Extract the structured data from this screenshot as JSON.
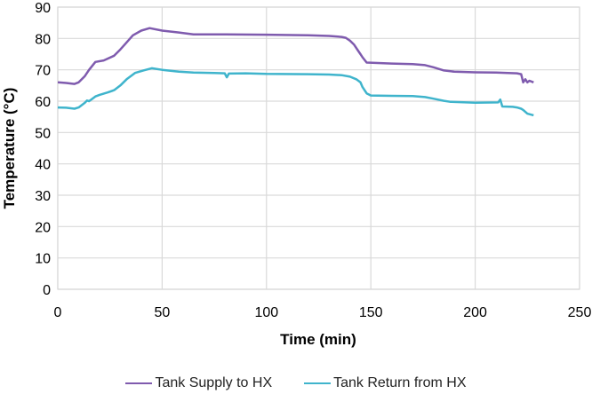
{
  "chart_data": {
    "type": "line",
    "title": "",
    "xlabel": "Time (min)",
    "ylabel": "Temperature (°C)",
    "xlim": [
      0,
      250
    ],
    "ylim": [
      0,
      90
    ],
    "xticks": [
      0,
      50,
      100,
      150,
      200,
      250
    ],
    "yticks": [
      0,
      10,
      20,
      30,
      40,
      50,
      60,
      70,
      80,
      90
    ],
    "grid": true,
    "legend_position": "bottom",
    "series": [
      {
        "name": "Tank Supply to HX",
        "color": "#7F5BAE",
        "points": [
          [
            0,
            66
          ],
          [
            4,
            65.8
          ],
          [
            8,
            65.5
          ],
          [
            10,
            66
          ],
          [
            13,
            68
          ],
          [
            15,
            70
          ],
          [
            18,
            72.5
          ],
          [
            22,
            73
          ],
          [
            27,
            74.5
          ],
          [
            30,
            76.5
          ],
          [
            32,
            78
          ],
          [
            36,
            81
          ],
          [
            40,
            82.5
          ],
          [
            44,
            83.3
          ],
          [
            50,
            82.5
          ],
          [
            58,
            81.9
          ],
          [
            65,
            81.3
          ],
          [
            80,
            81.3
          ],
          [
            100,
            81.2
          ],
          [
            120,
            81
          ],
          [
            130,
            80.8
          ],
          [
            136,
            80.5
          ],
          [
            138,
            80.2
          ],
          [
            140,
            79.3
          ],
          [
            142,
            78
          ],
          [
            144,
            76
          ],
          [
            145,
            75
          ],
          [
            146,
            74
          ],
          [
            148,
            72.3
          ],
          [
            160,
            72
          ],
          [
            170,
            71.8
          ],
          [
            176,
            71.5
          ],
          [
            180,
            70.8
          ],
          [
            185,
            69.8
          ],
          [
            190,
            69.4
          ],
          [
            200,
            69.2
          ],
          [
            210,
            69.1
          ],
          [
            220,
            68.9
          ],
          [
            222,
            68.6
          ],
          [
            223,
            66
          ],
          [
            224,
            67
          ],
          [
            225,
            66
          ],
          [
            226,
            66.5
          ],
          [
            228,
            66
          ]
        ]
      },
      {
        "name": "Tank Return from HX",
        "color": "#3FB4CC",
        "points": [
          [
            0,
            58
          ],
          [
            4,
            57.9
          ],
          [
            8,
            57.6
          ],
          [
            10,
            58
          ],
          [
            13,
            59.5
          ],
          [
            14,
            60.2
          ],
          [
            15,
            60
          ],
          [
            16,
            60.5
          ],
          [
            18,
            61.5
          ],
          [
            20,
            62
          ],
          [
            24,
            62.8
          ],
          [
            27,
            63.5
          ],
          [
            30,
            65
          ],
          [
            33,
            67
          ],
          [
            37,
            69
          ],
          [
            41,
            69.8
          ],
          [
            45,
            70.5
          ],
          [
            50,
            70
          ],
          [
            58,
            69.4
          ],
          [
            65,
            69.1
          ],
          [
            75,
            69
          ],
          [
            80,
            68.9
          ],
          [
            81,
            67.6
          ],
          [
            82,
            68.8
          ],
          [
            90,
            68.9
          ],
          [
            100,
            68.7
          ],
          [
            120,
            68.6
          ],
          [
            130,
            68.5
          ],
          [
            136,
            68.3
          ],
          [
            140,
            67.8
          ],
          [
            143,
            67
          ],
          [
            145,
            66
          ],
          [
            146,
            64.5
          ],
          [
            148,
            62.5
          ],
          [
            150,
            61.8
          ],
          [
            160,
            61.7
          ],
          [
            170,
            61.6
          ],
          [
            176,
            61.3
          ],
          [
            180,
            60.8
          ],
          [
            185,
            60.1
          ],
          [
            188,
            59.8
          ],
          [
            200,
            59.5
          ],
          [
            211,
            59.6
          ],
          [
            212,
            60.5
          ],
          [
            213,
            58.3
          ],
          [
            218,
            58.2
          ],
          [
            220,
            58
          ],
          [
            222,
            57.6
          ],
          [
            223,
            57.2
          ],
          [
            225,
            56
          ],
          [
            228,
            55.5
          ]
        ]
      }
    ]
  },
  "axes": {
    "x_title": "Time (min)",
    "y_title": "Temperature (°C)",
    "x_tick_labels": [
      "0",
      "50",
      "100",
      "150",
      "200",
      "250"
    ],
    "y_tick_labels": [
      "0",
      "10",
      "20",
      "30",
      "40",
      "50",
      "60",
      "70",
      "80",
      "90"
    ]
  },
  "legend": {
    "items": [
      {
        "label": "Tank Supply to HX",
        "color": "#7F5BAE"
      },
      {
        "label": "Tank Return from HX",
        "color": "#3FB4CC"
      }
    ]
  }
}
